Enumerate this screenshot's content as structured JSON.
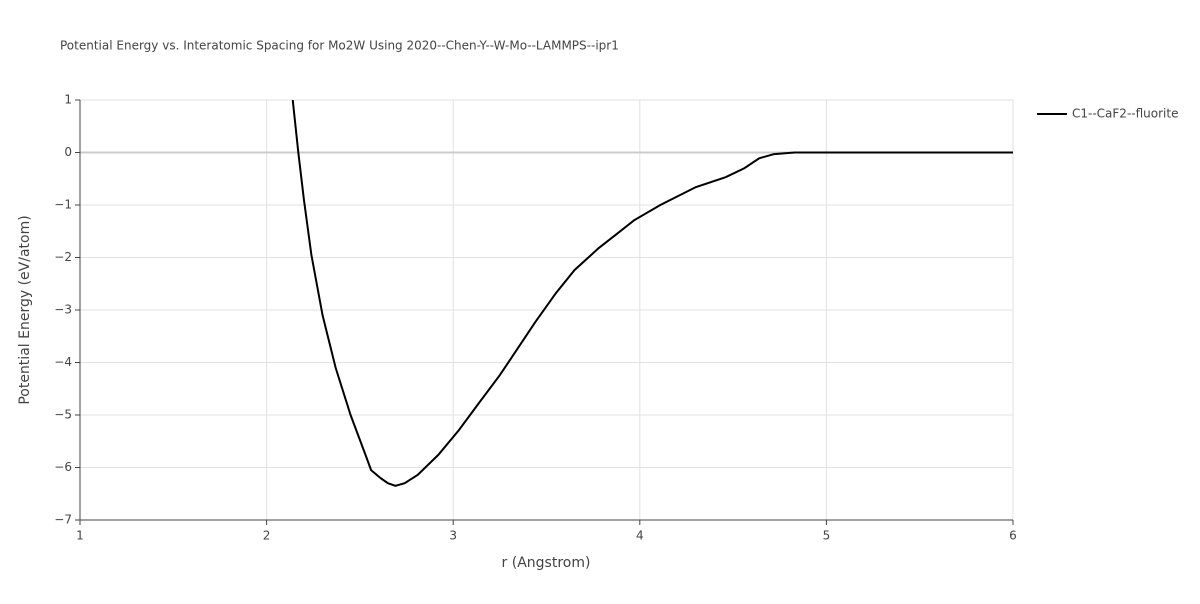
{
  "chart_data": {
    "type": "line",
    "title": "Potential Energy vs. Interatomic Spacing for Mo2W Using 2020--Chen-Y--W-Mo--LAMMPS--ipr1",
    "xlabel": "r (Angstrom)",
    "ylabel": "Potential Energy (eV/atom)",
    "x": [
      2.14,
      2.17,
      2.2,
      2.24,
      2.3,
      2.37,
      2.45,
      2.53,
      2.56,
      2.61,
      2.65,
      2.69,
      2.74,
      2.81,
      2.92,
      3.03,
      3.13,
      3.25,
      3.44,
      3.55,
      3.65,
      3.78,
      3.87,
      3.97,
      4.11,
      4.3,
      4.46,
      4.56,
      4.64,
      4.72,
      4.83,
      5.13,
      6.0
    ],
    "series": [
      {
        "name": "C1--CaF2--fluorite",
        "color": "#000000",
        "values": [
          1.0,
          0.0,
          -0.9,
          -1.95,
          -3.1,
          -4.1,
          -5.0,
          -5.76,
          -6.05,
          -6.2,
          -6.3,
          -6.35,
          -6.3,
          -6.14,
          -5.76,
          -5.29,
          -4.81,
          -4.24,
          -3.23,
          -2.68,
          -2.24,
          -1.82,
          -1.57,
          -1.29,
          -1.0,
          -0.66,
          -0.47,
          -0.3,
          -0.11,
          -0.03,
          0.0,
          0.0,
          0.0
        ]
      }
    ],
    "xlim": [
      1,
      6
    ],
    "xticks": [
      1,
      2,
      3,
      4,
      5,
      6
    ],
    "ylim": [
      -7,
      1
    ],
    "yticks": [
      {
        "value": -7,
        "label": "−7"
      },
      {
        "value": -6,
        "label": "−6"
      },
      {
        "value": -5,
        "label": "−5"
      },
      {
        "value": -4,
        "label": "−4"
      },
      {
        "value": -3,
        "label": "−3"
      },
      {
        "value": -2,
        "label": "−2"
      },
      {
        "value": -1,
        "label": "−1"
      },
      0,
      1
    ],
    "grid": true,
    "legend": "top-right"
  }
}
